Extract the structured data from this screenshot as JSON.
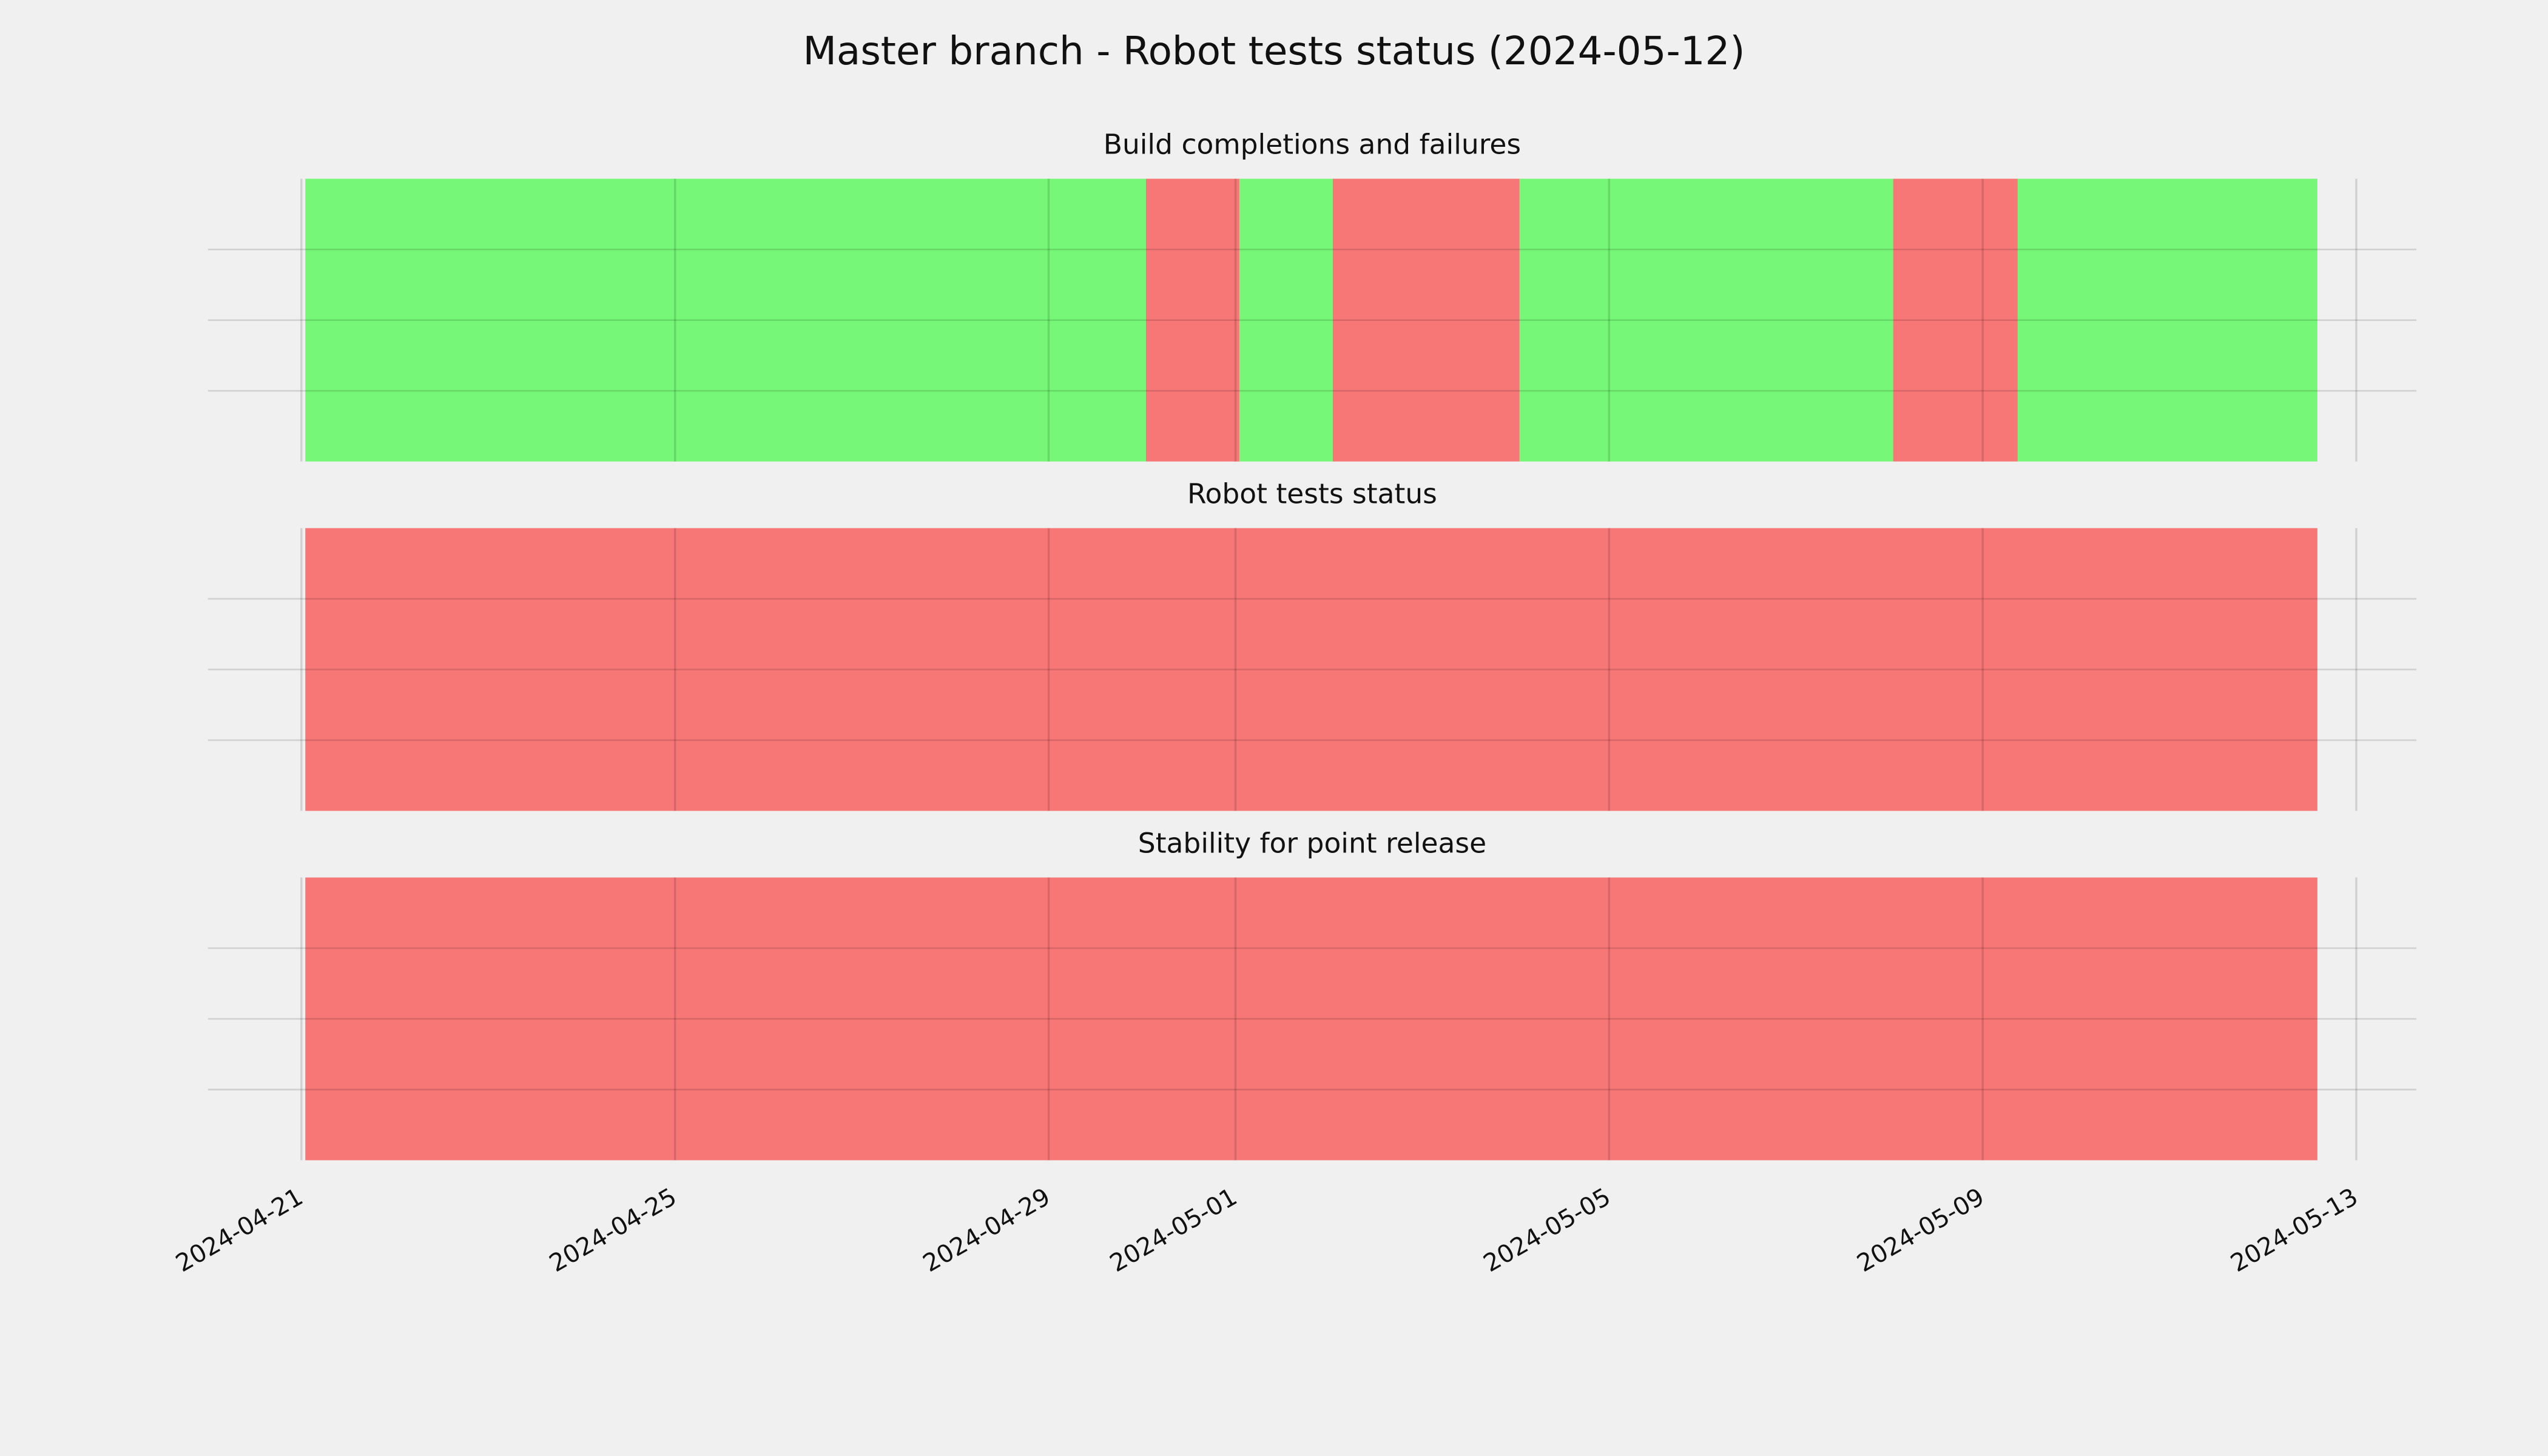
{
  "title": "Master branch - Robot tests status (2024-05-12)",
  "chart_data": [
    {
      "type": "timeline",
      "title": "Build completions and failures",
      "segments": [
        {
          "start": "2024-04-21T01:00",
          "end": "2024-04-30T01:00",
          "color": "#77f777"
        },
        {
          "start": "2024-04-30T01:00",
          "end": "2024-05-01T01:00",
          "color": "#f77777"
        },
        {
          "start": "2024-05-01T01:00",
          "end": "2024-05-02T01:00",
          "color": "#77f777"
        },
        {
          "start": "2024-05-02T01:00",
          "end": "2024-05-04T01:00",
          "color": "#f77777"
        },
        {
          "start": "2024-05-04T01:00",
          "end": "2024-05-08T01:00",
          "color": "#77f777"
        },
        {
          "start": "2024-05-08T01:00",
          "end": "2024-05-09T09:00",
          "color": "#f77777"
        },
        {
          "start": "2024-05-09T09:00",
          "end": "2024-05-12T14:00",
          "color": "#77f777"
        }
      ],
      "xlim": [
        "2024-04-20",
        "2024-05-13T15:26"
      ],
      "xticks": [
        "2024-04-21",
        "2024-04-25",
        "2024-04-29",
        "2024-05-01",
        "2024-05-05",
        "2024-05-09",
        "2024-05-13"
      ],
      "ylim": [
        0,
        1
      ],
      "yticks": [
        0.25,
        0.5,
        0.75
      ],
      "grid": true
    },
    {
      "type": "timeline",
      "title": "Robot tests status",
      "segments": [
        {
          "start": "2024-04-21T01:00",
          "end": "2024-05-12T14:00",
          "color": "#f77777"
        }
      ],
      "xlim": [
        "2024-04-20",
        "2024-05-13T15:26"
      ],
      "xticks": [
        "2024-04-21",
        "2024-04-25",
        "2024-04-29",
        "2024-05-01",
        "2024-05-05",
        "2024-05-09",
        "2024-05-13"
      ],
      "ylim": [
        0,
        1
      ],
      "yticks": [
        0.25,
        0.5,
        0.75
      ],
      "grid": true
    },
    {
      "type": "timeline",
      "title": "Stability for point release",
      "segments": [
        {
          "start": "2024-04-21T01:00",
          "end": "2024-05-12T14:00",
          "color": "#f77777"
        }
      ],
      "xlim": [
        "2024-04-20",
        "2024-05-13T15:26"
      ],
      "xticks": [
        "2024-04-21",
        "2024-04-25",
        "2024-04-29",
        "2024-05-01",
        "2024-05-05",
        "2024-05-09",
        "2024-05-13"
      ],
      "ylim": [
        0,
        1
      ],
      "yticks": [
        0.25,
        0.5,
        0.75
      ],
      "grid": true
    }
  ]
}
